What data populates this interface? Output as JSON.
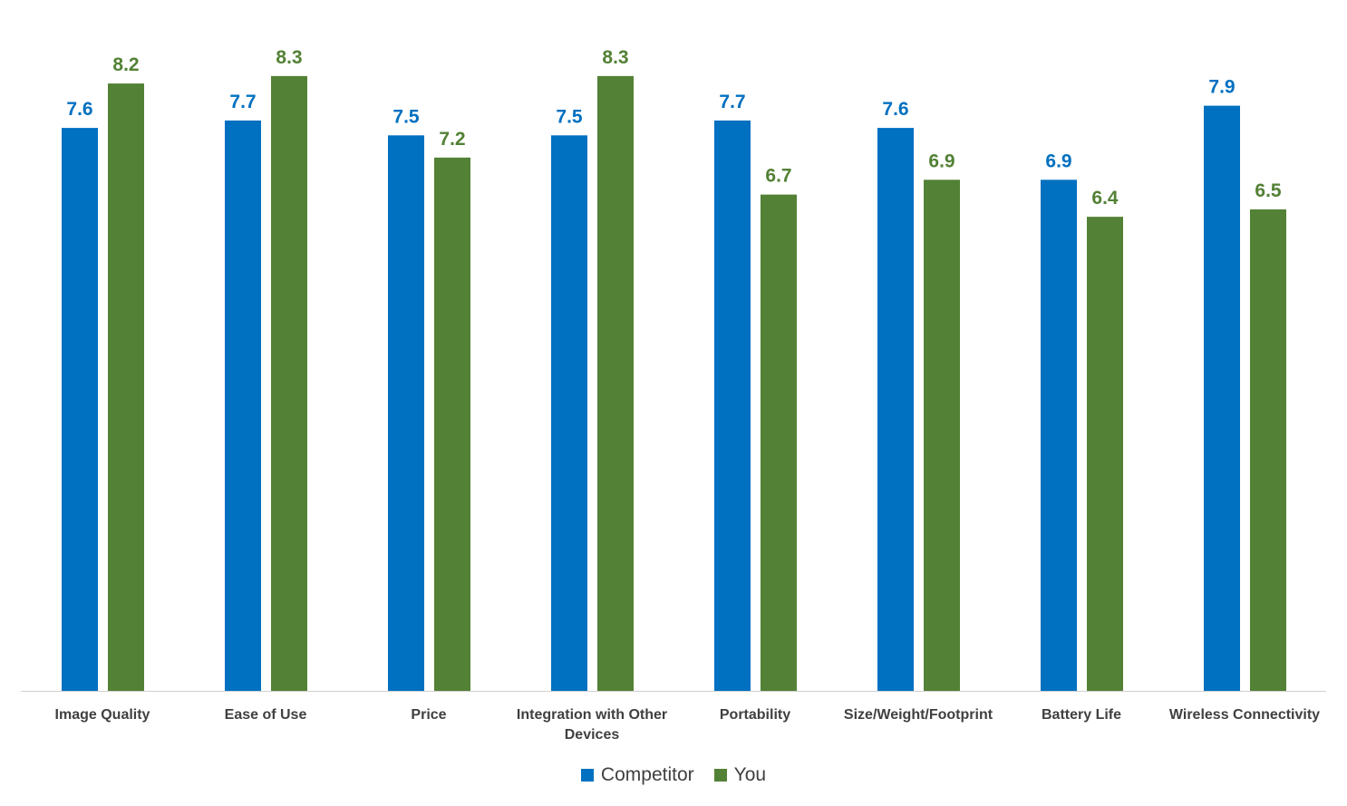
{
  "chart_data": {
    "type": "bar",
    "title": "",
    "xlabel": "",
    "ylabel": "",
    "ylim": [
      0,
      8.8
    ],
    "grid": false,
    "legend_placement": "bottom",
    "categories": [
      [
        "Image Quality"
      ],
      [
        "Ease of Use"
      ],
      [
        "Price"
      ],
      [
        "Integration with Other",
        "Devices"
      ],
      [
        "Portability"
      ],
      [
        "Size/Weight/Footprint"
      ],
      [
        "Battery Life"
      ],
      [
        "Wireless Connectivity"
      ]
    ],
    "series": [
      {
        "name": "Competitor",
        "color": "#0070C0",
        "values": [
          7.6,
          7.7,
          7.5,
          7.5,
          7.7,
          7.6,
          6.9,
          7.9
        ],
        "labels": [
          "7.6",
          "7.7",
          "7.5",
          "7.5",
          "7.7",
          "7.6",
          "6.9",
          "7.9"
        ]
      },
      {
        "name": "You",
        "color": "#538135",
        "values": [
          8.2,
          8.3,
          7.2,
          8.3,
          6.7,
          6.9,
          6.4,
          6.5
        ],
        "labels": [
          "8.2",
          "8.3",
          "7.2",
          "8.3",
          "6.7",
          "6.9",
          "6.4",
          "6.5"
        ]
      }
    ]
  }
}
